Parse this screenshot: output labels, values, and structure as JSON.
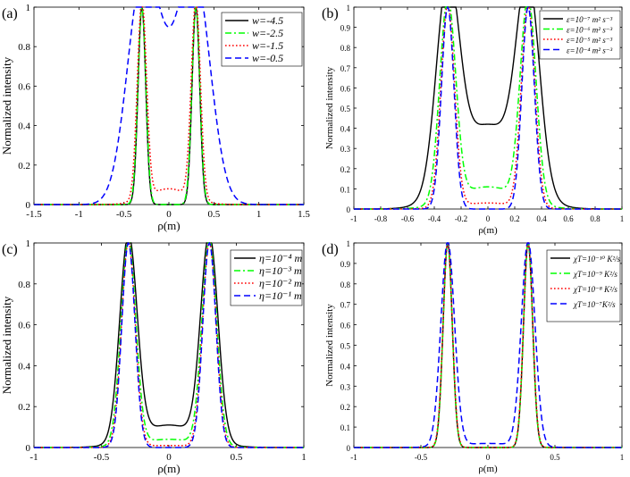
{
  "figure_title": "",
  "chart_data": [
    {
      "type": "line",
      "panel_label": "(a)",
      "xlabel": "ρ(m)",
      "ylabel": "Normalized intensity",
      "xlim": [
        -1.5,
        1.5
      ],
      "ylim": [
        0,
        1
      ],
      "xticks": [
        -1.5,
        -1,
        -0.5,
        0,
        0.5,
        1,
        1.5
      ],
      "xtick_labels": [
        "-1.5",
        "-1",
        "-0.5",
        "0",
        "0.5",
        "1",
        "1.5"
      ],
      "yticks": [
        0,
        0.2,
        0.4,
        0.6,
        0.8,
        1
      ],
      "ytick_labels": [
        "0",
        "0.2",
        "0.4",
        "0.6",
        "0.8",
        "1"
      ],
      "grid": false,
      "legend_position": "top-right",
      "series": [
        {
          "name": "w=-4.5",
          "color": "#000000",
          "dash": "solid",
          "peak": 0.3,
          "width": 0.1,
          "center_value": 0.0
        },
        {
          "name": "w=-2.5",
          "color": "#00ff00",
          "dash": "dashdot",
          "peak": 0.3,
          "width": 0.105,
          "center_value": 0.0
        },
        {
          "name": "w=-1.5",
          "color": "#ff0000",
          "dash": "dotted",
          "peak": 0.3,
          "width": 0.12,
          "center_value": 0.08
        },
        {
          "name": "w=-0.5",
          "color": "#0000ff",
          "dash": "dashed",
          "peak": 0.3,
          "width": 0.4,
          "center_value": 0.9
        }
      ]
    },
    {
      "type": "line",
      "panel_label": "(b)",
      "xlabel": "ρ(m)",
      "ylabel": "Normalized intensity",
      "xlim": [
        -1,
        1
      ],
      "ylim": [
        0,
        1
      ],
      "xticks": [
        -1,
        -0.8,
        -0.6,
        -0.4,
        -0.2,
        0,
        0.2,
        0.4,
        0.6,
        0.8,
        1
      ],
      "xtick_labels": [
        "-1",
        "-0.8",
        "-0.6",
        "-0.4",
        "-0.2",
        "0",
        "0.2",
        "0.4",
        "0.6",
        "0.8",
        "1"
      ],
      "yticks": [
        0,
        0.1,
        0.2,
        0.3,
        0.4,
        0.5,
        0.6,
        0.7,
        0.8,
        0.9,
        1
      ],
      "ytick_labels": [
        "0",
        "0.1",
        "0.2",
        "0.3",
        "0.4",
        "0.5",
        "0.6",
        "0.7",
        "0.8",
        "0.9",
        "1"
      ],
      "grid": false,
      "legend_position": "top-right",
      "series": [
        {
          "name": "ε=10⁻⁷ m² s⁻³",
          "color": "#000000",
          "dash": "solid",
          "peak": 0.3,
          "width": 0.2,
          "center_value": 0.42
        },
        {
          "name": "ε=10⁻⁶ m² s⁻³",
          "color": "#00ff00",
          "dash": "dashdot",
          "peak": 0.3,
          "width": 0.14,
          "center_value": 0.11
        },
        {
          "name": "ε=10⁻⁵ m² s⁻³",
          "color": "#ff0000",
          "dash": "dotted",
          "peak": 0.3,
          "width": 0.12,
          "center_value": 0.03
        },
        {
          "name": "ε=10⁻⁴ m² s⁻³",
          "color": "#0000ff",
          "dash": "dashed",
          "peak": 0.3,
          "width": 0.11,
          "center_value": 0.0
        }
      ]
    },
    {
      "type": "line",
      "panel_label": "(c)",
      "xlabel": "ρ(m)",
      "ylabel": "Normalized intensity",
      "xlim": [
        -1,
        1
      ],
      "ylim": [
        0,
        1
      ],
      "xticks": [
        -1,
        -0.5,
        0,
        0.5,
        1
      ],
      "xtick_labels": [
        "-1",
        "-0.5",
        "0",
        "0.5",
        "1"
      ],
      "yticks": [
        0,
        0.2,
        0.4,
        0.6,
        0.8,
        1
      ],
      "ytick_labels": [
        "0",
        "0.2",
        "0.4",
        "0.6",
        "0.8",
        "1"
      ],
      "grid": false,
      "legend_position": "top-right",
      "series": [
        {
          "name": "η=10⁻⁴ m",
          "color": "#000000",
          "dash": "solid",
          "peak": 0.3,
          "width": 0.15,
          "center_value": 0.11
        },
        {
          "name": "η=10⁻³ m",
          "color": "#00ff00",
          "dash": "dashdot",
          "peak": 0.3,
          "width": 0.13,
          "center_value": 0.04
        },
        {
          "name": "η=10⁻² m",
          "color": "#ff0000",
          "dash": "dotted",
          "peak": 0.3,
          "width": 0.12,
          "center_value": 0.01
        },
        {
          "name": "η=10⁻¹ m",
          "color": "#0000ff",
          "dash": "dashed",
          "peak": 0.3,
          "width": 0.115,
          "center_value": 0.0
        }
      ]
    },
    {
      "type": "line",
      "panel_label": "(d)",
      "xlabel": "ρ(m)",
      "ylabel": "Normalized intensity",
      "xlim": [
        -1,
        1
      ],
      "ylim": [
        0,
        1
      ],
      "xticks": [
        -1,
        -0.5,
        0,
        0.5,
        1
      ],
      "xtick_labels": [
        "-1",
        "-0.5",
        "0",
        "0.5",
        "1"
      ],
      "yticks": [
        0,
        0.1,
        0.2,
        0.3,
        0.4,
        0.5,
        0.6,
        0.7,
        0.8,
        0.9,
        1
      ],
      "ytick_labels": [
        "0",
        "0.1",
        "0.2",
        "0.3",
        "0.4",
        "0.5",
        "0.6",
        "0.7",
        "0.8",
        "0.9",
        "1"
      ],
      "grid": false,
      "legend_position": "top-right",
      "series": [
        {
          "name": "χT=10⁻¹⁰ K²/s",
          "color": "#000000",
          "dash": "solid",
          "peak": 0.3,
          "width": 0.08,
          "center_value": 0.0
        },
        {
          "name": "χT=10⁻⁹ K²/s",
          "color": "#00ff00",
          "dash": "dashdot",
          "peak": 0.3,
          "width": 0.08,
          "center_value": 0.0
        },
        {
          "name": "χT=10⁻⁸ K²/s",
          "color": "#ff0000",
          "dash": "dotted",
          "peak": 0.3,
          "width": 0.082,
          "center_value": 0.0
        },
        {
          "name": "χT=10⁻⁷K²/s",
          "color": "#0000ff",
          "dash": "dashed",
          "peak": 0.3,
          "width": 0.12,
          "center_value": 0.02
        }
      ]
    }
  ]
}
